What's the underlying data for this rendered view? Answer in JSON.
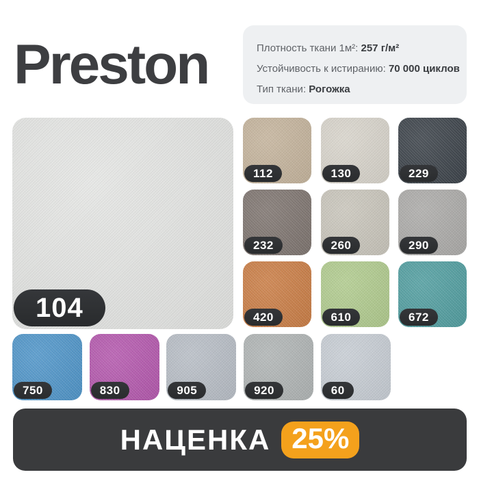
{
  "title": "Preston",
  "specs": [
    {
      "label": "Плотность ткани 1м²:",
      "value": "257 г/м²"
    },
    {
      "label": "Устойчивость к истиранию:",
      "value": "70 000 циклов"
    },
    {
      "label": "Тип ткани:",
      "value": "Рогожка"
    }
  ],
  "main_swatch": {
    "code": "104",
    "color": "#e3e4e2"
  },
  "grid_swatches": [
    {
      "code": "112",
      "color": "#c2b199"
    },
    {
      "code": "130",
      "color": "#d6d2c9"
    },
    {
      "code": "229",
      "color": "#373e45"
    },
    {
      "code": "232",
      "color": "#7b716c"
    },
    {
      "code": "260",
      "color": "#c7c3b9"
    },
    {
      "code": "290",
      "color": "#a9a8a6"
    },
    {
      "code": "420",
      "color": "#c87a41"
    },
    {
      "code": "610",
      "color": "#aec98b"
    },
    {
      "code": "672",
      "color": "#4d9b9d"
    }
  ],
  "bottom_swatches": [
    {
      "code": "750",
      "color": "#4b92c7"
    },
    {
      "code": "830",
      "color": "#b254ab"
    },
    {
      "code": "905",
      "color": "#b5bbc3"
    },
    {
      "code": "920",
      "color": "#adb2b2"
    },
    {
      "code": "60",
      "color": "#c5cbd2"
    }
  ],
  "markup": {
    "label": "НАЦЕНКА",
    "value": "25%",
    "badge_color": "#f4a11c"
  },
  "colors": {
    "page_bg": "#ffffff",
    "panel_bg": "#eef0f2",
    "badge_dark": "#2e3033",
    "bar_dark": "#3a3b3d",
    "accent_orange": "#f4a11c",
    "title_text": "#3d3e41"
  }
}
